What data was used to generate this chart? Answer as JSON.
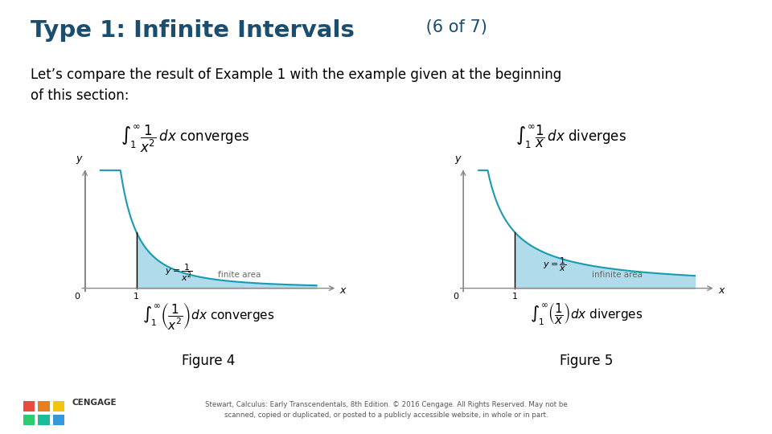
{
  "title_bold": "Type 1: Infinite Intervals",
  "title_normal": " (6 of 7)",
  "title_color": "#1a4d6e",
  "body_text": "Let’s compare the result of Example 1 with the example given at the beginning\nof this section:",
  "fig4_formula": "$\\int_1^{\\infty} \\dfrac{1}{x^2}\\,dx$ converges",
  "fig4_area_text": "finite area",
  "fig4_caption": "$\\int_1^{\\infty} \\left(\\dfrac{1}{x^2}\\right)dx$ converges",
  "fig4_title": "Figure 4",
  "fig5_formula": "$\\int_1^{\\infty} \\dfrac{1}{x}\\,dx$ diverges",
  "fig5_area_text": "infinite area",
  "fig5_caption": "$\\int_1^{\\infty} \\left(\\dfrac{1}{x}\\right)dx$ diverges",
  "fig5_title": "Figure 5",
  "fill_color": "#a8d8e8",
  "curve_color": "#1a9ab0",
  "axis_color": "#888888",
  "bg_color": "#ffffff",
  "footer_text": "Stewart, Calculus: Early Transcendentals, 8th Edition. © 2016 Cengage. All Rights Reserved. May not be\nscanned, copied or duplicated, or posted to a publicly accessible website, in whole or in part."
}
